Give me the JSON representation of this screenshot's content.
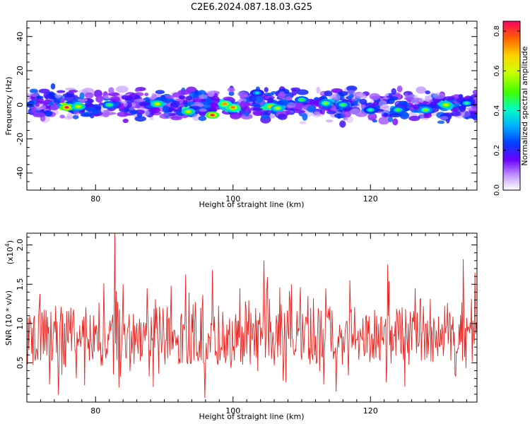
{
  "title": "C2E6.2024.087.18.03.G25",
  "chart_data": [
    {
      "type": "heatmap",
      "xlabel": "Height of straight line (km)",
      "ylabel": "Frequency (Hz)",
      "xlim": [
        70,
        135.5
      ],
      "ylim": [
        -50,
        49
      ],
      "xticks": [
        "80",
        "100",
        "120"
      ],
      "xtick_values": [
        80,
        100,
        120
      ],
      "yticks": [
        "-40",
        "-20",
        "0",
        "20",
        "40"
      ],
      "ytick_values": [
        -40,
        -20,
        0,
        20,
        40
      ],
      "grid": false,
      "signal_band_hz": [
        -12,
        12
      ],
      "hotspots": [
        {
          "x": 75.8,
          "y": -1.5,
          "a": 0.82
        },
        {
          "x": 77.5,
          "y": -1,
          "a": 0.6
        },
        {
          "x": 82,
          "y": 0,
          "a": 0.45
        },
        {
          "x": 89,
          "y": 0.5,
          "a": 0.6
        },
        {
          "x": 93.5,
          "y": -4,
          "a": 0.6
        },
        {
          "x": 97,
          "y": -6,
          "a": 0.8
        },
        {
          "x": 98.8,
          "y": 0.5,
          "a": 0.7
        },
        {
          "x": 100,
          "y": -1.5,
          "a": 0.72
        },
        {
          "x": 103.5,
          "y": 7,
          "a": 0.35
        },
        {
          "x": 105.5,
          "y": -1,
          "a": 0.65
        },
        {
          "x": 106.5,
          "y": -2,
          "a": 0.55
        },
        {
          "x": 110,
          "y": 3,
          "a": 0.45
        },
        {
          "x": 113.5,
          "y": 1,
          "a": 0.5
        },
        {
          "x": 116,
          "y": 0,
          "a": 0.45
        },
        {
          "x": 120,
          "y": -3,
          "a": 0.4
        },
        {
          "x": 124,
          "y": -3,
          "a": 0.45
        },
        {
          "x": 128,
          "y": -3,
          "a": 0.5
        },
        {
          "x": 131,
          "y": 0,
          "a": 0.6
        },
        {
          "x": 134,
          "y": 1,
          "a": 0.4
        }
      ]
    },
    {
      "type": "line",
      "xlabel": "Height of straight line (km)",
      "ylabel": "SNR (10 * v/v)",
      "multiplier_label": "(x10",
      "multiplier_exp": "4",
      "xlim": [
        70,
        135.5
      ],
      "ylim": [
        0,
        2.15
      ],
      "xticks": [
        "80",
        "100",
        "120"
      ],
      "xtick_values": [
        80,
        100,
        120
      ],
      "yticks": [
        "0.5",
        "1.0",
        "1.5",
        "2.0"
      ],
      "ytick_values": [
        0.5,
        1.0,
        1.5,
        2.0
      ],
      "grid": false,
      "series": [
        {
          "color": "#e8231f",
          "x_start": 70,
          "x_step": 0.1,
          "values": []
        }
      ],
      "notable_peaks": [
        {
          "x": 82.8,
          "y": 2.15
        },
        {
          "x": 84,
          "y": 1.5
        },
        {
          "x": 87.5,
          "y": 1.45
        },
        {
          "x": 97,
          "y": 1.68
        },
        {
          "x": 101,
          "y": 1.45
        },
        {
          "x": 104.5,
          "y": 1.8
        },
        {
          "x": 108.5,
          "y": 1.5
        },
        {
          "x": 113.5,
          "y": 1.45
        },
        {
          "x": 117,
          "y": 1.55
        },
        {
          "x": 122.5,
          "y": 1.75
        },
        {
          "x": 126.5,
          "y": 1.45
        },
        {
          "x": 133.5,
          "y": 1.82
        },
        {
          "x": 135.2,
          "y": 1.65
        }
      ]
    }
  ],
  "colorbar": {
    "label": "Normalized spectral amplitude",
    "range": [
      0,
      0.85
    ],
    "ticks": [
      "0.0",
      "0.2",
      "0.4",
      "0.6",
      "0.8"
    ],
    "tick_values": [
      0,
      0.2,
      0.4,
      0.6,
      0.8
    ]
  }
}
